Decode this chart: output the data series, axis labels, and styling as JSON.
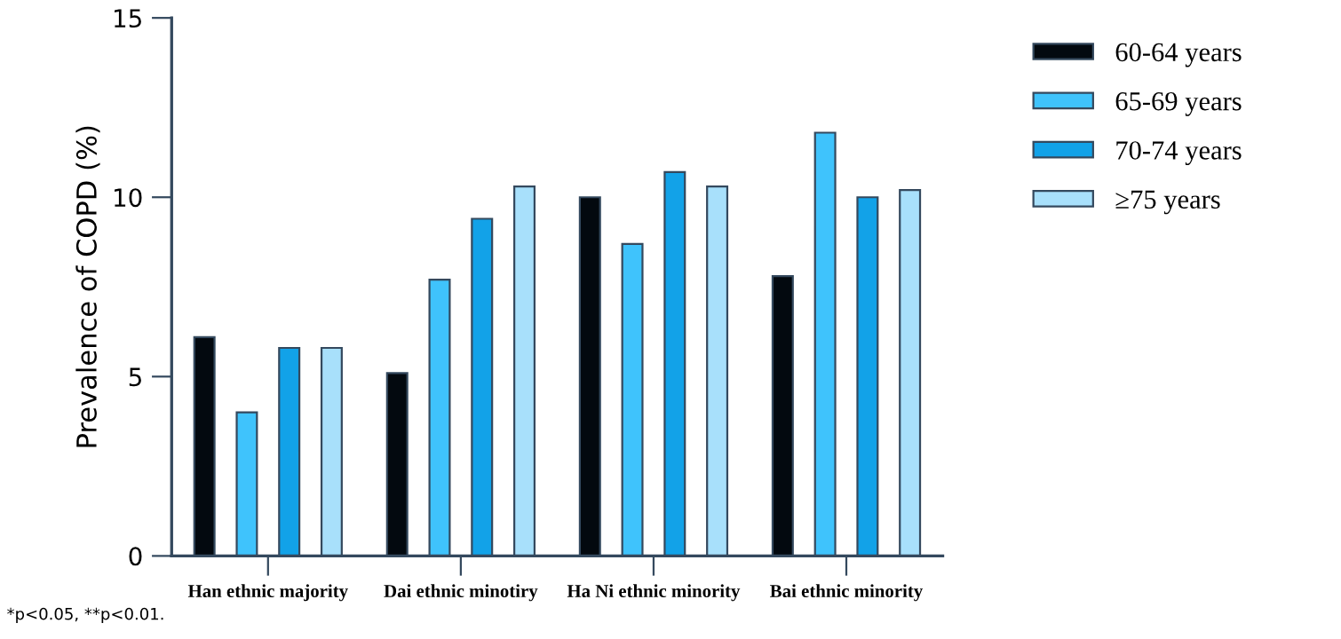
{
  "chart_data": {
    "type": "bar",
    "ylabel": "Prevalence of COPD (%)",
    "categories": [
      "Han ethnic majority",
      "Dai ethnic minotiry",
      "Ha Ni ethnic minority",
      "Bai ethnic minority"
    ],
    "series": [
      {
        "name": "60-64 years",
        "color": "#03090f",
        "values": [
          6.1,
          5.1,
          10.0,
          7.8
        ]
      },
      {
        "name": "65-69 years",
        "color": "#3fc3fc",
        "values": [
          4.0,
          7.7,
          8.7,
          11.8
        ]
      },
      {
        "name": "70-74 years",
        "color": "#12a2e8",
        "values": [
          5.8,
          9.4,
          10.7,
          10.0
        ]
      },
      {
        "name": "≥75 years",
        "color": "#a8e0fb",
        "values": [
          5.8,
          10.3,
          10.3,
          10.2
        ]
      }
    ],
    "ylim": [
      0,
      15
    ],
    "yticks": [
      0,
      5,
      10,
      15
    ],
    "grid": false,
    "legend": "top right",
    "annotations": [
      "*p<0.05, **p<0.01."
    ]
  }
}
